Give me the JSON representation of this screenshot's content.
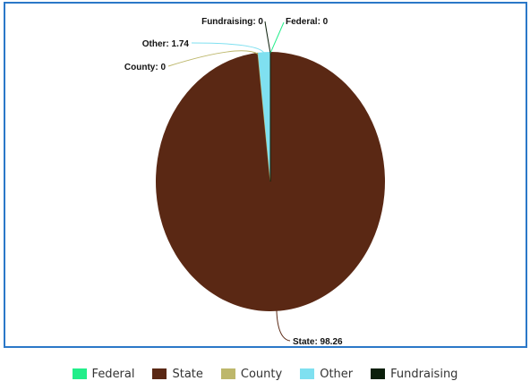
{
  "chart_data": {
    "type": "pie",
    "slices": [
      {
        "name": "Federal",
        "value": 0,
        "color": "#22ee8a",
        "label": "Federal: 0"
      },
      {
        "name": "State",
        "value": 98.26,
        "color": "#5a2814",
        "label": "State: 98.26"
      },
      {
        "name": "County",
        "value": 0,
        "color": "#bdb76b",
        "label": "County: 0"
      },
      {
        "name": "Other",
        "value": 1.74,
        "color": "#7fe0f0",
        "label": "Other: 1.74"
      },
      {
        "name": "Fundraising",
        "value": 0,
        "color": "#0b1f0b",
        "label": "Fundraising: 0"
      }
    ],
    "legend_position": "bottom"
  },
  "colors": {
    "frame_border": "#2b78c8"
  }
}
